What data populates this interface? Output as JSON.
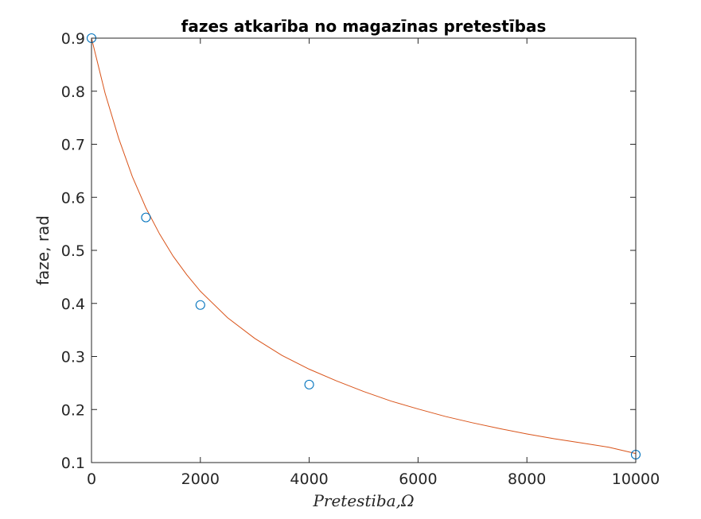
{
  "chart_data": {
    "type": "scatter",
    "title": "fazes atkarība no magazīnas pretestības",
    "xlabel": "Pretestiba,Ω",
    "ylabel": "faze, rad",
    "xlim": [
      0,
      10000
    ],
    "ylim": [
      0.1,
      0.9
    ],
    "xticks": [
      0,
      2000,
      4000,
      6000,
      8000,
      10000
    ],
    "yticks": [
      0.1,
      0.2,
      0.3,
      0.4,
      0.5,
      0.6,
      0.7,
      0.8,
      0.9
    ],
    "grid": false,
    "series": [
      {
        "kind": "markers",
        "marker": "circle",
        "color": "#0072BD",
        "x": [
          0,
          1000,
          2000,
          4000,
          10000
        ],
        "y": [
          0.9,
          0.562,
          0.397,
          0.247,
          0.115
        ]
      },
      {
        "kind": "fit-line",
        "color": "#D95319",
        "x": [
          0,
          250,
          500,
          750,
          1000,
          1250,
          1500,
          1750,
          2000,
          2500,
          3000,
          3500,
          4000,
          4500,
          5000,
          5500,
          6000,
          6500,
          7000,
          7500,
          8000,
          8500,
          9000,
          9500,
          10000
        ],
        "y": [
          0.9,
          0.796,
          0.711,
          0.639,
          0.58,
          0.531,
          0.489,
          0.454,
          0.423,
          0.373,
          0.334,
          0.302,
          0.276,
          0.254,
          0.234,
          0.216,
          0.201,
          0.187,
          0.175,
          0.164,
          0.154,
          0.145,
          0.137,
          0.129,
          0.117
        ]
      }
    ]
  }
}
